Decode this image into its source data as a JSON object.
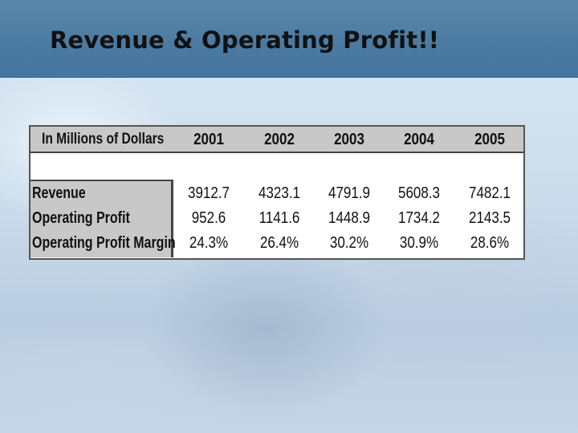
{
  "slide": {
    "title": "Revenue & Operating Profit!!"
  },
  "table": {
    "corner_label": "In Millions of Dollars",
    "years": [
      "2001",
      "2002",
      "2003",
      "2004",
      "2005"
    ],
    "rows": [
      {
        "label": "Revenue",
        "values": [
          "3912.7",
          "4323.1",
          "4791.9",
          "5608.3",
          "7482.1"
        ]
      },
      {
        "label": "Operating Profit",
        "values": [
          "952.6",
          "1141.6",
          "1448.9",
          "1734.2",
          "2143.5"
        ]
      },
      {
        "label": "Operating Profit Margin",
        "values": [
          "24.3%",
          "26.4%",
          "30.2%",
          "30.9%",
          "28.6%"
        ]
      }
    ]
  },
  "colors": {
    "title_bar": "#4a7aa0",
    "table_header_bg": "#c8c8c8"
  }
}
